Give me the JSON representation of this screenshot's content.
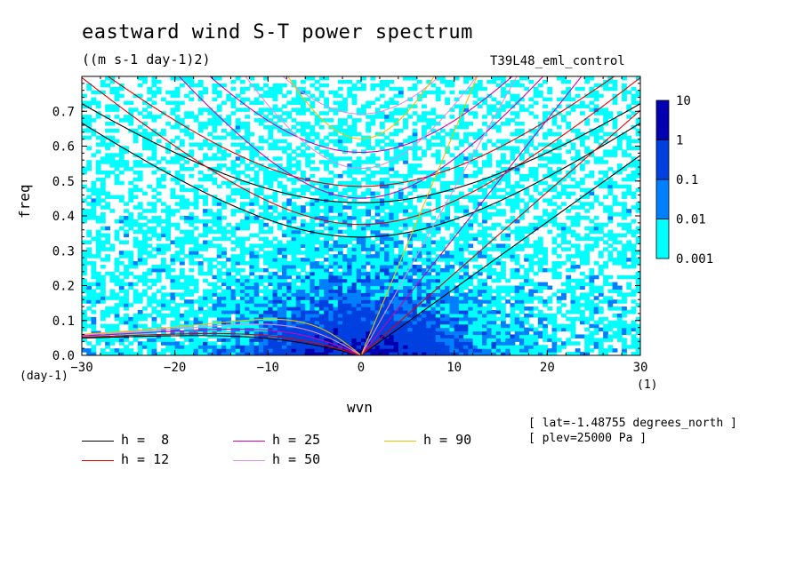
{
  "chart_data": {
    "type": "heatmap",
    "title": "eastward wind S-T power spectrum",
    "units": "((m s-1 day-1)2)",
    "experiment": "T39L48_eml_control",
    "xlabel": "wvn",
    "ylabel": "freq",
    "x_unit": "(1)",
    "y_unit": "(day-1)",
    "xlim": [
      -30,
      30
    ],
    "ylim": [
      0,
      0.8
    ],
    "x_ticks": [
      "-30",
      "-20",
      "-10",
      "0",
      "10",
      "20",
      "30"
    ],
    "y_ticks": [
      "0.0",
      "0.1",
      "0.2",
      "0.3",
      "0.4",
      "0.5",
      "0.6",
      "0.7"
    ],
    "colorbar": {
      "levels": [
        "0.001",
        "0.01",
        "0.1",
        "1",
        "10"
      ],
      "colors": [
        "#00ffff",
        "#0080ff",
        "#0040e0",
        "#0000b0",
        "#4010b0"
      ]
    },
    "annotations": [
      "[ lat=-1.48755 degrees_north ]",
      "[ plev=25000 Pa ]"
    ],
    "dispersion_curves": [
      {
        "label": "h =  8",
        "h": 8,
        "color": "#000000"
      },
      {
        "label": "h = 12",
        "h": 12,
        "color": "#e00000"
      },
      {
        "label": "h = 25",
        "h": 25,
        "color": "#d000b0"
      },
      {
        "label": "h = 50",
        "h": 50,
        "color": "#e090e0"
      },
      {
        "label": "h = 90",
        "h": 90,
        "color": "#f0c000"
      }
    ]
  }
}
